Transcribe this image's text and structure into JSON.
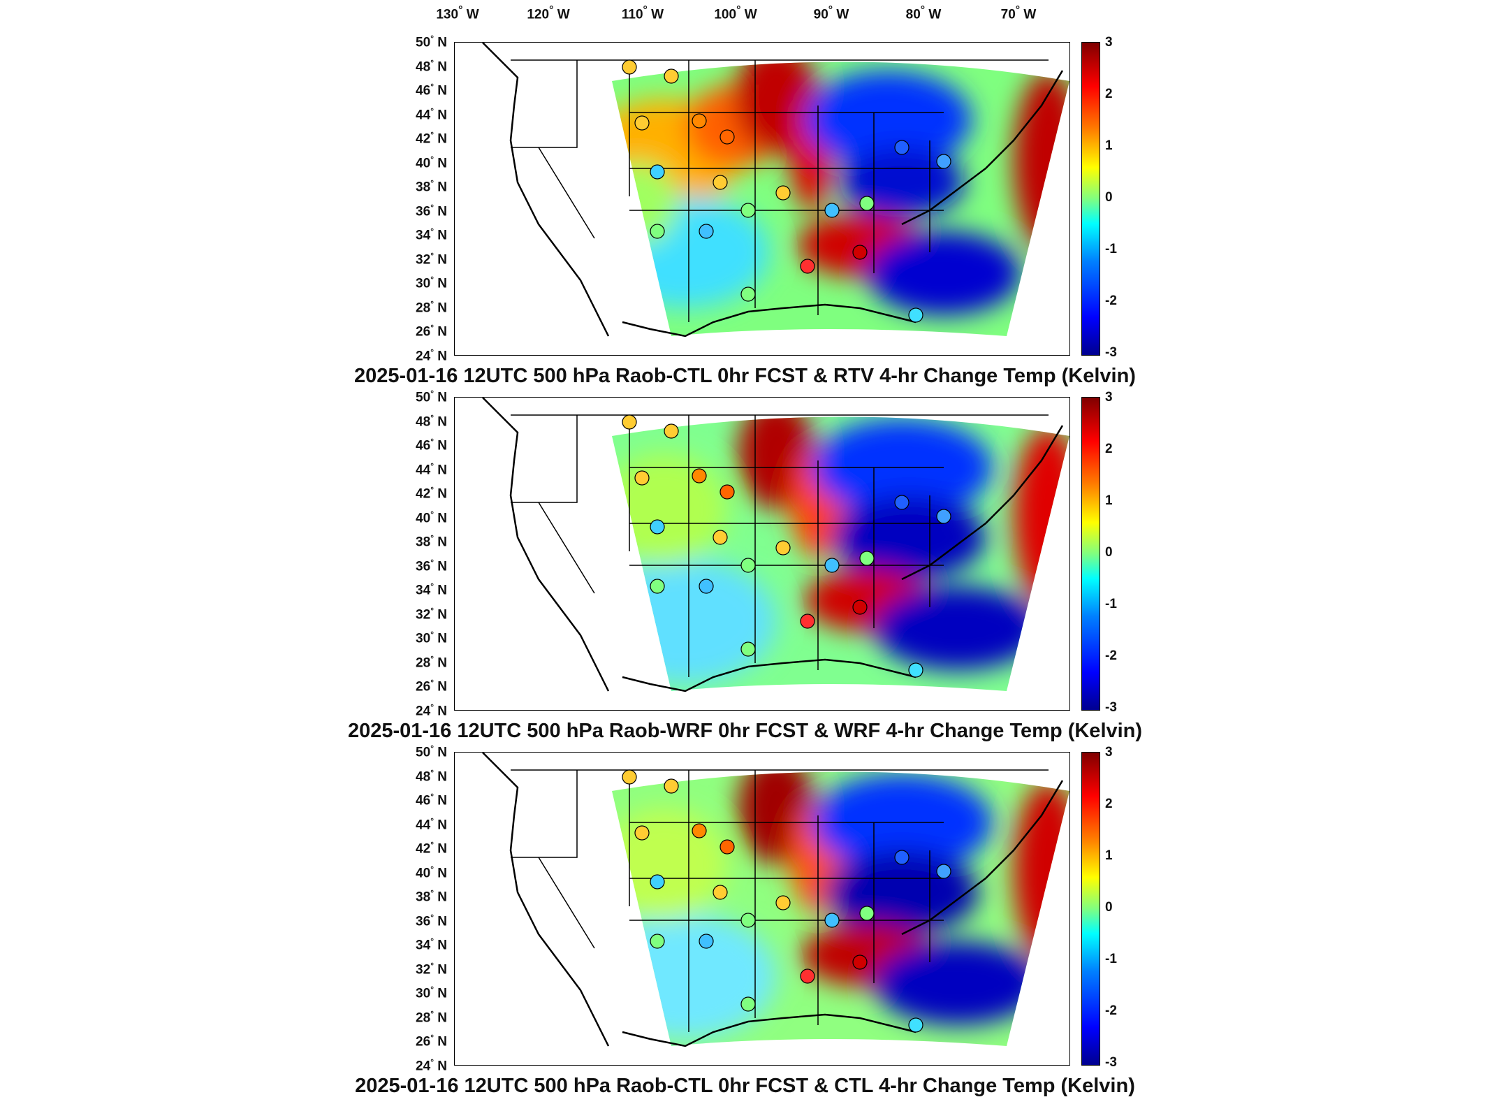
{
  "lon_labels": [
    "130",
    "W",
    "120",
    "W",
    "110",
    "W",
    "100",
    "W",
    "90",
    "W",
    "80",
    "W",
    "70",
    "W"
  ],
  "lon_ticks": [
    {
      "deg": "130",
      "hem": "W"
    },
    {
      "deg": "120",
      "hem": "W"
    },
    {
      "deg": "110",
      "hem": "W"
    },
    {
      "deg": "100",
      "hem": "W"
    },
    {
      "deg": "90",
      "hem": "W"
    },
    {
      "deg": "80",
      "hem": "W"
    },
    {
      "deg": "70",
      "hem": "W"
    }
  ],
  "lat_ticks": [
    {
      "deg": "50",
      "hem": "N"
    },
    {
      "deg": "48",
      "hem": "N"
    },
    {
      "deg": "46",
      "hem": "N"
    },
    {
      "deg": "44",
      "hem": "N"
    },
    {
      "deg": "42",
      "hem": "N"
    },
    {
      "deg": "40",
      "hem": "N"
    },
    {
      "deg": "38",
      "hem": "N"
    },
    {
      "deg": "36",
      "hem": "N"
    },
    {
      "deg": "34",
      "hem": "N"
    },
    {
      "deg": "32",
      "hem": "N"
    },
    {
      "deg": "30",
      "hem": "N"
    },
    {
      "deg": "28",
      "hem": "N"
    },
    {
      "deg": "26",
      "hem": "N"
    },
    {
      "deg": "24",
      "hem": "N"
    }
  ],
  "colorbar_ticks": [
    "3",
    "2",
    "1",
    "0",
    "-1",
    "-2",
    "-3"
  ],
  "colormap": "jet",
  "colorbar_range": [
    -3,
    3
  ],
  "panels": [
    {
      "title": "2025-01-16 12UTC 500 hPa Raob-CTL 0hr FCST & RTV 4-hr Change Temp (Kelvin)"
    },
    {
      "title": "2025-01-16 12UTC 500 hPa Raob-WRF 0hr FCST & WRF 4-hr Change Temp (Kelvin)"
    },
    {
      "title": "2025-01-16 12UTC 500 hPa Raob-CTL 0hr FCST & CTL 4-hr Change Temp (Kelvin)"
    }
  ]
}
